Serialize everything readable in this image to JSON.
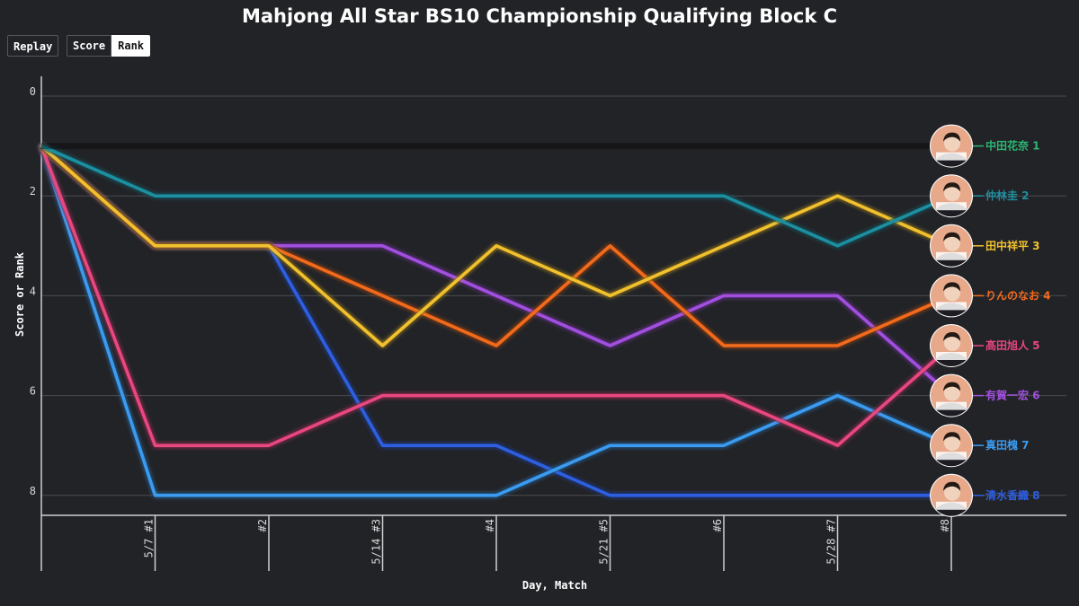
{
  "title": "Mahjong All Star BS10 Championship Qualifying Block C",
  "controls": {
    "replay_label": "Replay",
    "score_label": "Score",
    "rank_label": "Rank",
    "active_mode": "Rank"
  },
  "chart_data": {
    "type": "line",
    "title": "Mahjong All Star BS10 Championship Qualifying Block C",
    "xlabel": "Day, Match",
    "ylabel": "Score or Rank",
    "x_tick_labels": [
      "5/7 #1",
      "#2",
      "5/14 #3",
      "#4",
      "5/21 #5",
      "#6",
      "5/28 #7",
      "#8"
    ],
    "y_ticks": [
      0,
      2,
      4,
      6,
      8
    ],
    "ylim": [
      0,
      8.4
    ],
    "y_inverted": true,
    "grid": true,
    "series": [
      {
        "name": "中田花奈",
        "rank": 1,
        "color": "#2bb673",
        "values": [
          1,
          1,
          1,
          1,
          1,
          1,
          1,
          1,
          1
        ]
      },
      {
        "name": "仲林圭",
        "rank": 2,
        "color": "#1f8fa0",
        "values": [
          1,
          2,
          2,
          2,
          2,
          2,
          2,
          3,
          2
        ]
      },
      {
        "name": "田中祥平",
        "rank": 3,
        "color": "#f2c12e",
        "values": [
          1,
          3,
          3,
          5,
          3,
          4,
          3,
          2,
          3
        ]
      },
      {
        "name": "りんのなお",
        "rank": 4,
        "color": "#f26b1d",
        "values": [
          1,
          3,
          3,
          4,
          5,
          3,
          5,
          5,
          4
        ]
      },
      {
        "name": "髙田旭人",
        "rank": 5,
        "color": "#e8467f",
        "values": [
          1,
          7,
          7,
          6,
          6,
          6,
          6,
          7,
          5
        ]
      },
      {
        "name": "有賀一宏",
        "rank": 6,
        "color": "#a24fe0",
        "values": [
          1,
          3,
          3,
          3,
          4,
          5,
          4,
          4,
          6
        ]
      },
      {
        "name": "真田槐",
        "rank": 7,
        "color": "#3a9bf0",
        "values": [
          1,
          8,
          8,
          8,
          8,
          7,
          7,
          6,
          7
        ]
      },
      {
        "name": "清水香織",
        "rank": 8,
        "color": "#2f5fe0",
        "values": [
          1,
          3,
          3,
          7,
          7,
          8,
          8,
          8,
          8
        ]
      }
    ]
  }
}
